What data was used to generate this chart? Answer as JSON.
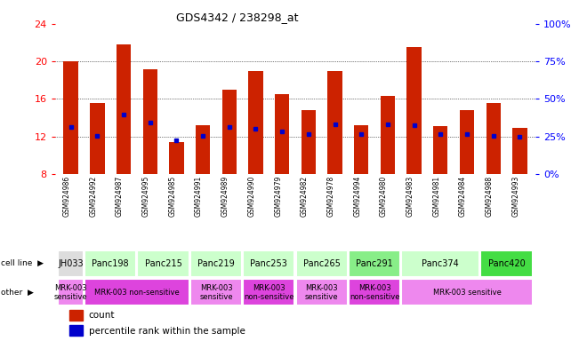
{
  "title": "GDS4342 / 238298_at",
  "samples": [
    "GSM924986",
    "GSM924992",
    "GSM924987",
    "GSM924995",
    "GSM924985",
    "GSM924991",
    "GSM924989",
    "GSM924990",
    "GSM924979",
    "GSM924982",
    "GSM924978",
    "GSM924994",
    "GSM924980",
    "GSM924983",
    "GSM924981",
    "GSM924984",
    "GSM924988",
    "GSM924993"
  ],
  "bar_heights": [
    20.0,
    15.6,
    21.8,
    19.2,
    11.4,
    13.2,
    17.0,
    19.0,
    16.5,
    14.8,
    19.0,
    13.2,
    16.3,
    21.5,
    13.1,
    14.8,
    15.6,
    12.9
  ],
  "blue_markers": [
    13.0,
    12.1,
    14.3,
    13.5,
    11.6,
    12.1,
    13.0,
    12.8,
    12.5,
    12.2,
    13.3,
    12.2,
    13.3,
    13.2,
    12.2,
    12.2,
    12.1,
    12.0
  ],
  "cell_lines": [
    {
      "label": "JH033",
      "start": 0,
      "end": 1,
      "color": "#dddddd"
    },
    {
      "label": "Panc198",
      "start": 1,
      "end": 3,
      "color": "#ccffcc"
    },
    {
      "label": "Panc215",
      "start": 3,
      "end": 5,
      "color": "#ccffcc"
    },
    {
      "label": "Panc219",
      "start": 5,
      "end": 7,
      "color": "#ccffcc"
    },
    {
      "label": "Panc253",
      "start": 7,
      "end": 9,
      "color": "#ccffcc"
    },
    {
      "label": "Panc265",
      "start": 9,
      "end": 11,
      "color": "#ccffcc"
    },
    {
      "label": "Panc291",
      "start": 11,
      "end": 13,
      "color": "#88ee88"
    },
    {
      "label": "Panc374",
      "start": 13,
      "end": 16,
      "color": "#ccffcc"
    },
    {
      "label": "Panc420",
      "start": 16,
      "end": 18,
      "color": "#44dd44"
    }
  ],
  "other_rows": [
    {
      "label": "MRK-003\nsensitive",
      "start": 0,
      "end": 1,
      "color": "#ee88ee"
    },
    {
      "label": "MRK-003 non-sensitive",
      "start": 1,
      "end": 5,
      "color": "#dd44dd"
    },
    {
      "label": "MRK-003\nsensitive",
      "start": 5,
      "end": 7,
      "color": "#ee88ee"
    },
    {
      "label": "MRK-003\nnon-sensitive",
      "start": 7,
      "end": 9,
      "color": "#dd44dd"
    },
    {
      "label": "MRK-003\nsensitive",
      "start": 9,
      "end": 11,
      "color": "#ee88ee"
    },
    {
      "label": "MRK-003\nnon-sensitive",
      "start": 11,
      "end": 13,
      "color": "#dd44dd"
    },
    {
      "label": "MRK-003 sensitive",
      "start": 13,
      "end": 18,
      "color": "#ee88ee"
    }
  ],
  "ylim": [
    8,
    24
  ],
  "yticks_left": [
    8,
    12,
    16,
    20,
    24
  ],
  "yticks_right_pct": [
    0,
    25,
    50,
    75,
    100
  ],
  "hgrid_at": [
    12,
    16,
    20
  ],
  "bar_color": "#cc2200",
  "blue_color": "#0000cc",
  "bg_color": "#ffffff",
  "bar_width": 0.55,
  "n_samples": 18
}
